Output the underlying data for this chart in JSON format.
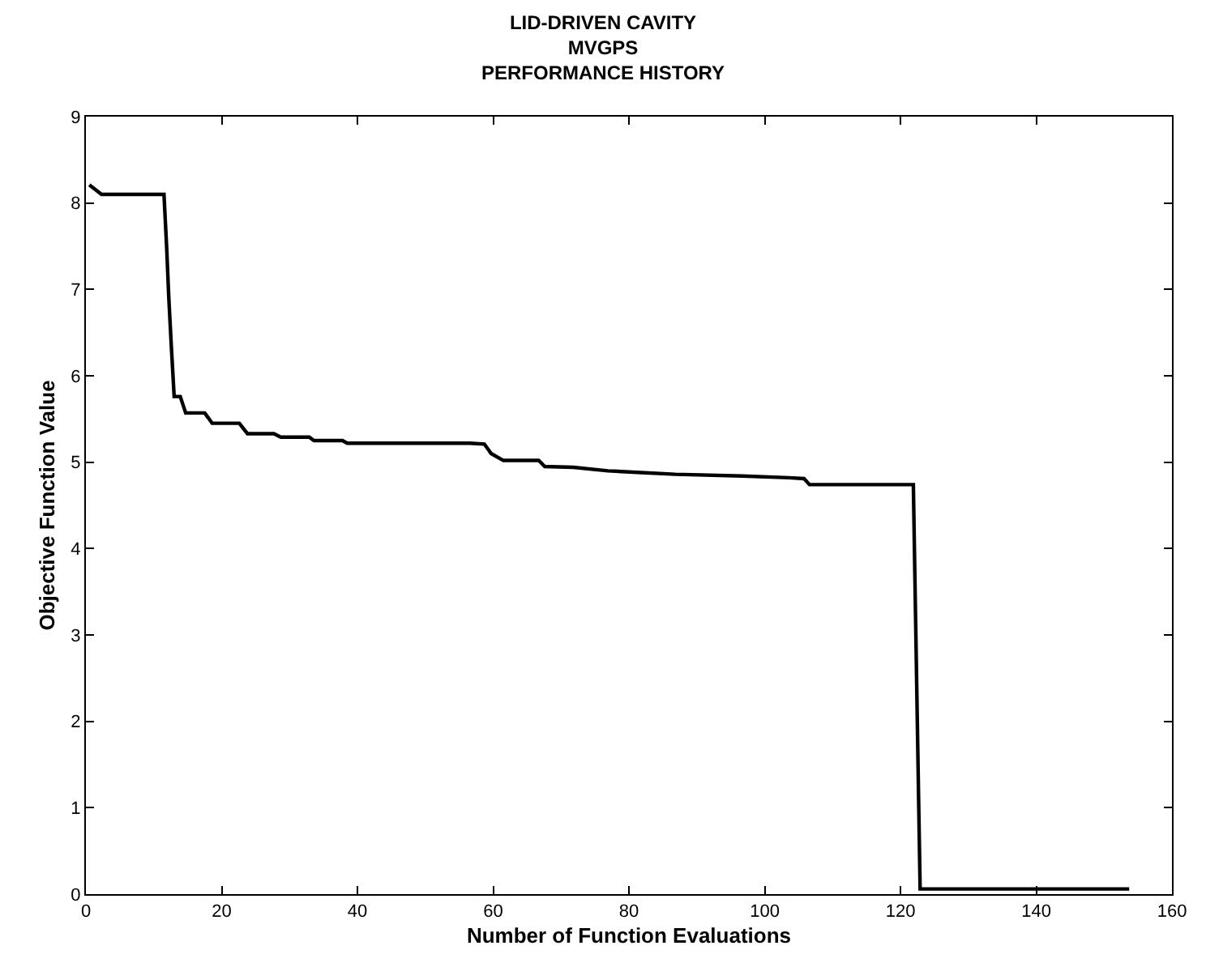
{
  "chart_data": {
    "type": "line",
    "title": "LID-DRIVEN CAVITY\nMVGPS\nPERFORMANCE HISTORY",
    "xlabel": "Number of Function Evaluations",
    "ylabel": "Objective Function Value",
    "xlim": [
      0,
      160
    ],
    "xticks": [
      0,
      20,
      40,
      60,
      80,
      100,
      120,
      140,
      160
    ],
    "ylim": [
      0,
      9
    ],
    "yticks": [
      0,
      1,
      2,
      3,
      4,
      5,
      6,
      7,
      8,
      9
    ],
    "marker": "none",
    "line_style": "solid",
    "series": [
      {
        "color": "#000000",
        "x": [
          0.5,
          2.3,
          11.5,
          11.9,
          12.2,
          12.6,
          13.0,
          13.9,
          14.7,
          17.5,
          18.6,
          22.6,
          23.8,
          27.7,
          28.7,
          32.9,
          33.6,
          37.8,
          38.5,
          56.6,
          58.7,
          59.7,
          61.5,
          66.7,
          67.6,
          71.8,
          76.9,
          81.8,
          86.8,
          96.7,
          103.6,
          105.8,
          106.6,
          121.9,
          122.9,
          153.7
        ],
        "values": [
          8.21,
          8.1,
          8.1,
          7.48,
          6.92,
          6.32,
          5.76,
          5.76,
          5.57,
          5.57,
          5.45,
          5.45,
          5.33,
          5.33,
          5.29,
          5.29,
          5.25,
          5.25,
          5.22,
          5.22,
          5.21,
          5.1,
          5.02,
          5.02,
          4.95,
          4.94,
          4.9,
          4.88,
          4.86,
          4.84,
          4.82,
          4.81,
          4.74,
          4.74,
          0.06,
          0.06
        ]
      }
    ]
  }
}
